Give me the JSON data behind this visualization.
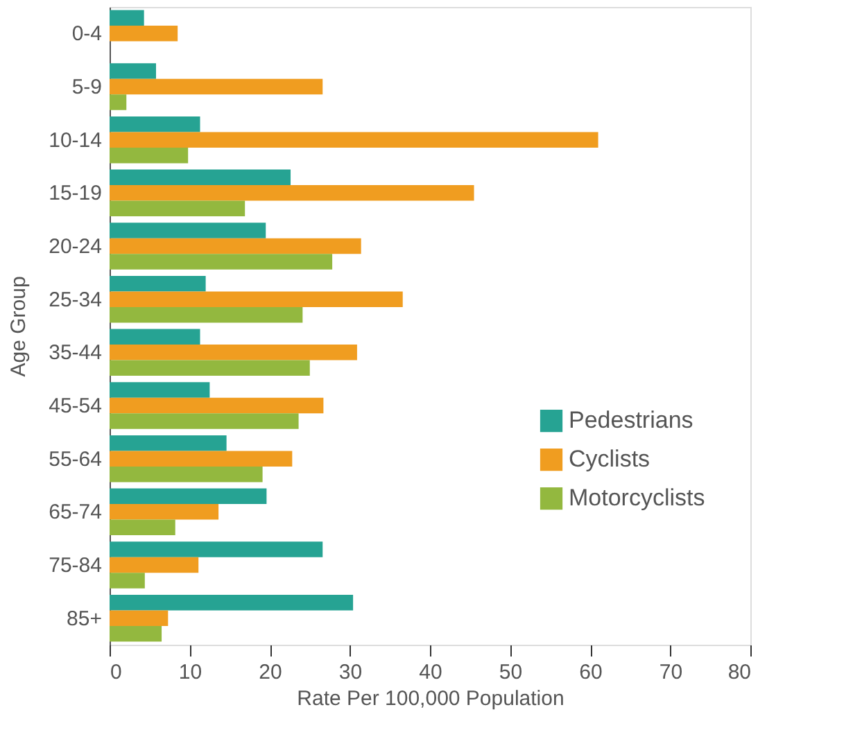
{
  "chart_data": {
    "type": "bar",
    "orientation": "horizontal",
    "xlabel": "Rate Per 100,000 Population",
    "ylabel": "Age Group",
    "categories": [
      "0-4",
      "5-9",
      "10-14",
      "15-19",
      "20-24",
      "25-34",
      "35-44",
      "45-54",
      "55-64",
      "65-74",
      "75-84",
      "85+"
    ],
    "series": [
      {
        "name": "Pedestrians",
        "color": "#26a393",
        "values": [
          4.3,
          5.8,
          11.3,
          22.6,
          19.5,
          12.0,
          11.3,
          12.5,
          14.6,
          19.6,
          26.6,
          30.4
        ]
      },
      {
        "name": "Cyclists",
        "color": "#f09d20",
        "values": [
          8.5,
          26.6,
          61.0,
          45.5,
          31.4,
          36.6,
          30.9,
          26.7,
          22.8,
          13.6,
          11.1,
          7.3
        ]
      },
      {
        "name": "Motorcyclists",
        "color": "#93b83f",
        "values": [
          null,
          2.1,
          9.8,
          16.9,
          27.8,
          24.1,
          25.0,
          23.6,
          19.1,
          8.2,
          4.4,
          6.5
        ]
      }
    ],
    "xlim": [
      0,
      80
    ],
    "xticks": [
      0,
      10,
      20,
      30,
      40,
      50,
      60,
      70,
      80
    ],
    "grid": false,
    "legend": "right"
  }
}
